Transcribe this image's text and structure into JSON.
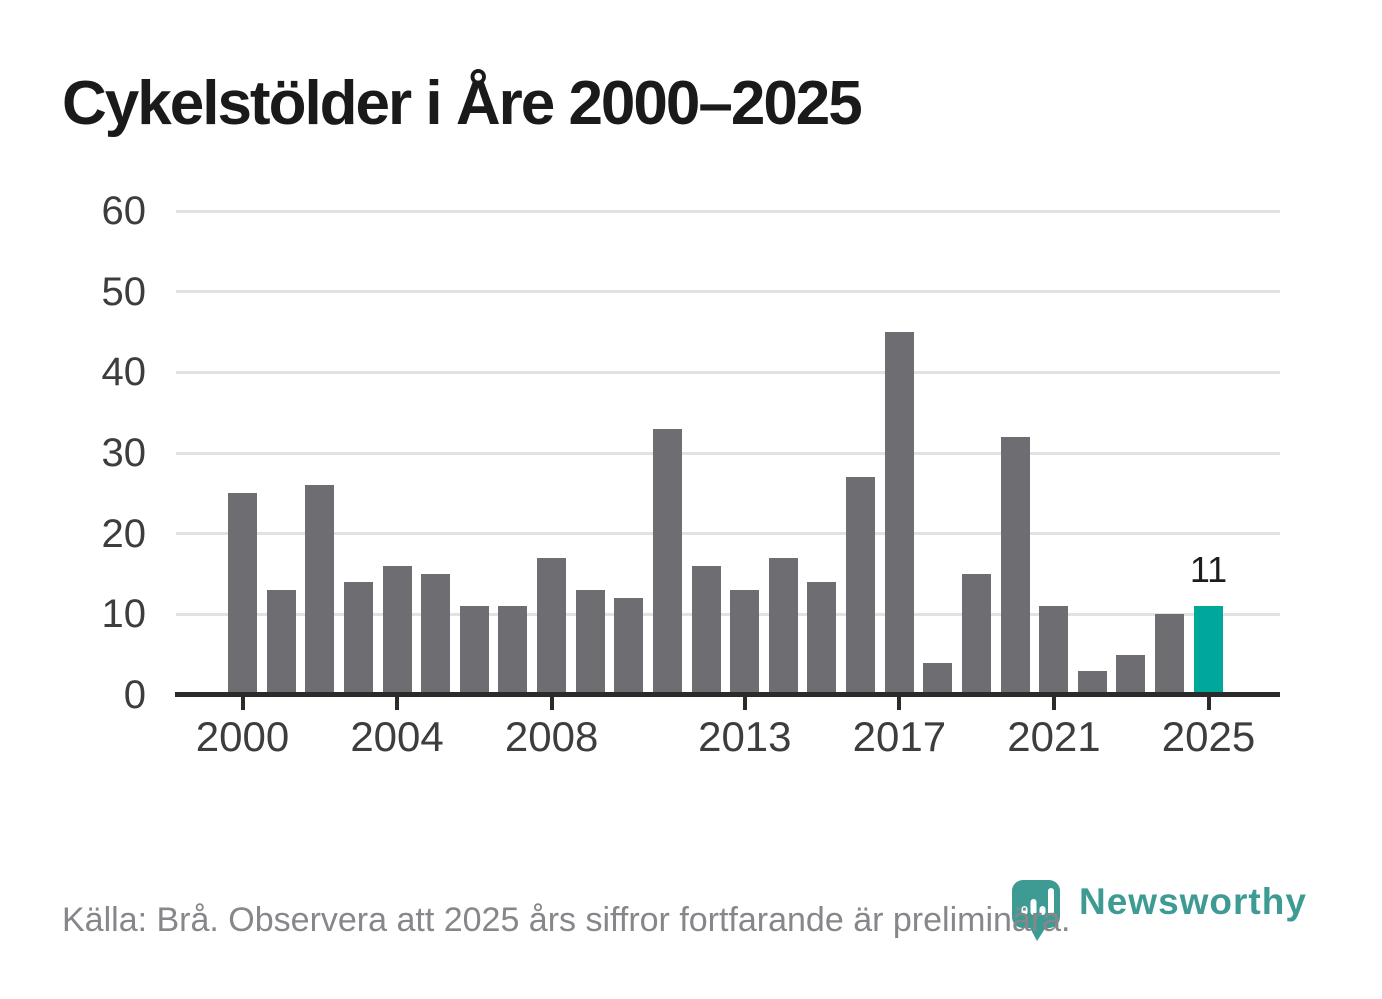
{
  "page": {
    "title": "Cykelstölder i Åre 2000–2025"
  },
  "chart_data": {
    "type": "bar",
    "title": "Cykelstölder i Åre 2000–2025",
    "x": [
      2000,
      2001,
      2002,
      2003,
      2004,
      2005,
      2006,
      2007,
      2008,
      2009,
      2010,
      2011,
      2012,
      2013,
      2014,
      2015,
      2016,
      2017,
      2018,
      2019,
      2020,
      2021,
      2022,
      2023,
      2024,
      2025
    ],
    "values": [
      25,
      13,
      26,
      14,
      16,
      15,
      11,
      11,
      17,
      13,
      12,
      33,
      16,
      13,
      17,
      14,
      27,
      45,
      4,
      15,
      32,
      11,
      3,
      5,
      10,
      11
    ],
    "highlight_year": 2025,
    "annotation": {
      "year": 2025,
      "label": "11"
    },
    "ylim": [
      0,
      60
    ],
    "yticks": [
      0,
      10,
      20,
      30,
      40,
      50,
      60
    ],
    "xticks": [
      2000,
      2004,
      2008,
      2013,
      2017,
      2021,
      2025
    ],
    "grid": "horizontal",
    "legend": "none",
    "colors": {
      "bar": "#6d6d72",
      "highlight": "#00a79b",
      "gridline": "#e2e2e2",
      "axis": "#2b2b2b",
      "tick_label": "#3d3d3d",
      "annotation_label": "#1c1c1c"
    }
  },
  "footer": {
    "source_text": "Källa: Brå. Observera att 2025 års siffror fortfarande är preliminära."
  },
  "branding": {
    "name": "Newsworthy",
    "color": "#3d9b94",
    "icon": "newsworthy-pin-barchart-icon"
  }
}
